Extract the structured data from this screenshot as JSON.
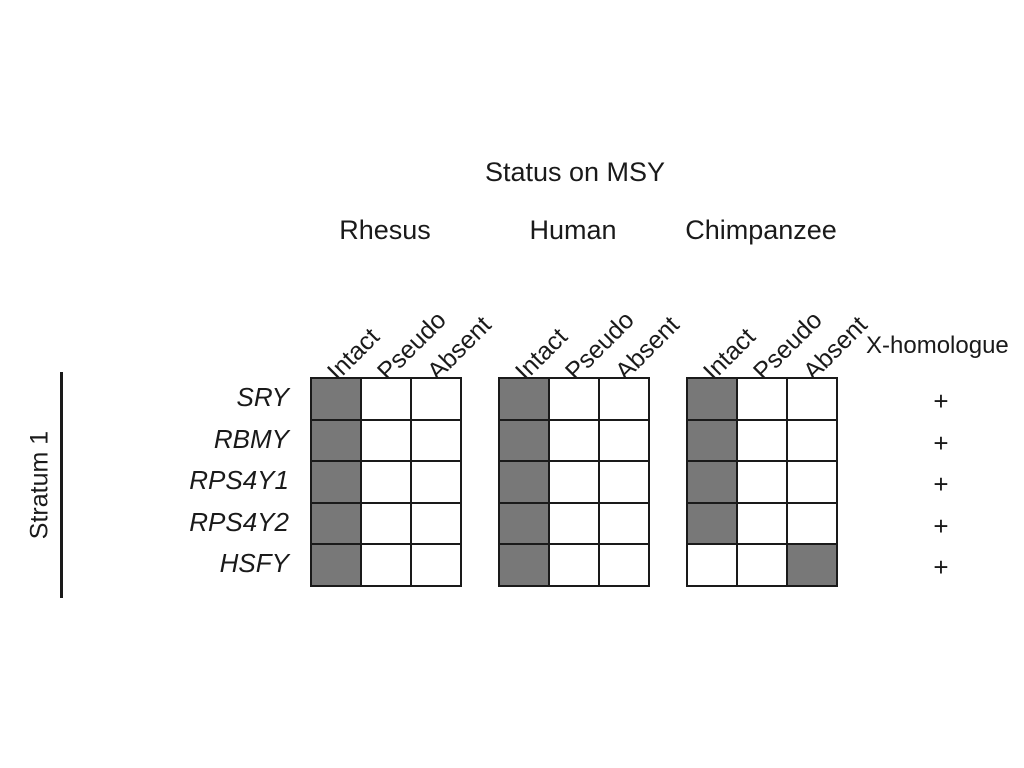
{
  "title": "Status on MSY",
  "species": [
    "Rhesus",
    "Human",
    "Chimpanzee"
  ],
  "status_columns": [
    "Intact",
    "Pseudo",
    "Absent"
  ],
  "x_homologue_label": "X-homologue",
  "stratum_label": "Stratum 1",
  "genes": [
    {
      "name": "SRY",
      "status": [
        "Intact",
        "Intact",
        "Intact"
      ],
      "x_homologue": "+"
    },
    {
      "name": "RBMY",
      "status": [
        "Intact",
        "Intact",
        "Intact"
      ],
      "x_homologue": "+"
    },
    {
      "name": "RPS4Y1",
      "status": [
        "Intact",
        "Intact",
        "Intact"
      ],
      "x_homologue": "+"
    },
    {
      "name": "RPS4Y2",
      "status": [
        "Intact",
        "Intact",
        "Intact"
      ],
      "x_homologue": "+"
    },
    {
      "name": "HSFY",
      "status": [
        "Intact",
        "Intact",
        "Absent"
      ],
      "x_homologue": "+"
    }
  ],
  "colors": {
    "filled": "#787878",
    "empty": "#ffffff",
    "line": "#1a1a1a"
  }
}
